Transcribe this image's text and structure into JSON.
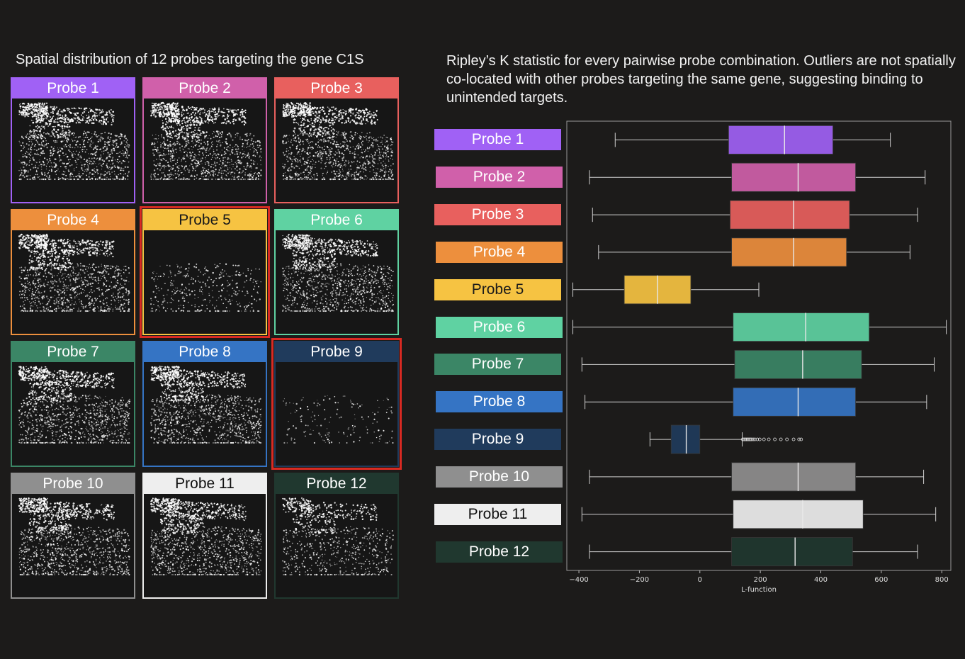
{
  "left_panel": {
    "title": "Spatial distribution of 12 probes targeting the gene C1S"
  },
  "right_panel": {
    "title": "Ripley’s K statistic for every pairwise probe combination. Outliers are not spatially co-located with other probes targeting the same gene, suggesting binding to unintended targets."
  },
  "probes": [
    {
      "label": "Probe 1",
      "color": "#a061f5",
      "text_color": "#ffffff",
      "density": "high",
      "flagged": false
    },
    {
      "label": "Probe 2",
      "color": "#d060aa",
      "text_color": "#ffffff",
      "density": "high",
      "flagged": false
    },
    {
      "label": "Probe 3",
      "color": "#e8605e",
      "text_color": "#ffffff",
      "density": "high",
      "flagged": false
    },
    {
      "label": "Probe 4",
      "color": "#ed8f3d",
      "text_color": "#ffffff",
      "density": "high",
      "flagged": false
    },
    {
      "label": "Probe 5",
      "color": "#f6c342",
      "text_color": "#1a1a1a",
      "density": "low",
      "flagged": true
    },
    {
      "label": "Probe 6",
      "color": "#5fd2a2",
      "text_color": "#ffffff",
      "density": "high",
      "flagged": false
    },
    {
      "label": "Probe 7",
      "color": "#3b8666",
      "text_color": "#ffffff",
      "density": "high",
      "flagged": false
    },
    {
      "label": "Probe 8",
      "color": "#3574c4",
      "text_color": "#ffffff",
      "density": "high",
      "flagged": false
    },
    {
      "label": "Probe 9",
      "color": "#203b5c",
      "text_color": "#ffffff",
      "density": "sparse",
      "flagged": true
    },
    {
      "label": "Probe 10",
      "color": "#8f8f8f",
      "text_color": "#ffffff",
      "density": "high",
      "flagged": false
    },
    {
      "label": "Probe 11",
      "color": "#eeeeee",
      "text_color": "#111111",
      "density": "high",
      "flagged": false
    },
    {
      "label": "Probe 12",
      "color": "#20382f",
      "text_color": "#ffffff",
      "density": "medium",
      "flagged": false
    }
  ],
  "chart_data": {
    "type": "boxplot",
    "orientation": "horizontal",
    "xlabel": "L-function",
    "xlim": [
      -440,
      830
    ],
    "xticks": [
      -400,
      -200,
      0,
      200,
      400,
      600,
      800
    ],
    "xtick_labels": [
      "−400",
      "−200",
      "0",
      "200",
      "400",
      "600",
      "800"
    ],
    "grid": false,
    "series": [
      {
        "name": "Probe 1",
        "min": -280,
        "q1": 95,
        "median": 280,
        "q3": 440,
        "max": 630,
        "outliers": []
      },
      {
        "name": "Probe 2",
        "min": -365,
        "q1": 105,
        "median": 325,
        "q3": 515,
        "max": 745,
        "outliers": []
      },
      {
        "name": "Probe 3",
        "min": -355,
        "q1": 100,
        "median": 310,
        "q3": 495,
        "max": 720,
        "outliers": []
      },
      {
        "name": "Probe 4",
        "min": -335,
        "q1": 105,
        "median": 310,
        "q3": 485,
        "max": 695,
        "outliers": []
      },
      {
        "name": "Probe 5",
        "min": -420,
        "q1": -250,
        "median": -140,
        "q3": -30,
        "max": 195,
        "outliers": []
      },
      {
        "name": "Probe 6",
        "min": -420,
        "q1": 110,
        "median": 350,
        "q3": 560,
        "max": 815,
        "outliers": []
      },
      {
        "name": "Probe 7",
        "min": -390,
        "q1": 115,
        "median": 340,
        "q3": 535,
        "max": 775,
        "outliers": []
      },
      {
        "name": "Probe 8",
        "min": -380,
        "q1": 110,
        "median": 325,
        "q3": 515,
        "max": 750,
        "outliers": []
      },
      {
        "name": "Probe 9",
        "min": -165,
        "q1": -95,
        "median": -45,
        "q3": 0,
        "max": 140,
        "outliers": [
          142,
          146,
          150,
          154,
          158,
          162,
          166,
          170,
          176,
          182,
          190,
          198,
          212,
          228,
          248,
          268,
          288,
          310,
          328,
          335
        ]
      },
      {
        "name": "Probe 10",
        "min": -365,
        "q1": 105,
        "median": 325,
        "q3": 515,
        "max": 740,
        "outliers": []
      },
      {
        "name": "Probe 11",
        "min": -390,
        "q1": 110,
        "median": 340,
        "q3": 540,
        "max": 780,
        "outliers": []
      },
      {
        "name": "Probe 12",
        "min": -365,
        "q1": 105,
        "median": 315,
        "q3": 505,
        "max": 720,
        "outliers": []
      }
    ]
  }
}
